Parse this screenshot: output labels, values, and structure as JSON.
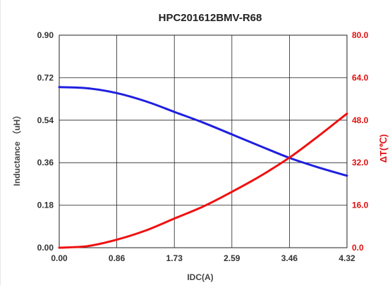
{
  "chart_data": {
    "type": "line",
    "title": "HPC201612BMV-R68",
    "xlabel": "IDC(A)",
    "ylabel_left": "Inductance （uH）",
    "ylabel_right": "ΔT(℃)",
    "x_ticks": [
      "0.00",
      "0.86",
      "1.73",
      "2.59",
      "3.46",
      "4.32"
    ],
    "y_left_ticks": [
      "0.00",
      "0.18",
      "0.36",
      "0.54",
      "0.72",
      "0.90"
    ],
    "y_right_ticks": [
      "0.0",
      "16.0",
      "32.0",
      "48.0",
      "64.0",
      "80.0"
    ],
    "xlim": [
      0,
      4.32
    ],
    "ylim_left": [
      0,
      0.9
    ],
    "ylim_right": [
      0,
      80
    ],
    "grid": true,
    "series": [
      {
        "name": "Inductance",
        "axis": "left",
        "color": "#1f1fe0",
        "x": [
          0.0,
          0.43,
          0.86,
          1.3,
          1.73,
          2.16,
          2.59,
          3.02,
          3.46,
          3.89,
          4.32
        ],
        "y": [
          0.68,
          0.675,
          0.655,
          0.62,
          0.575,
          0.53,
          0.48,
          0.43,
          0.38,
          0.34,
          0.305
        ]
      },
      {
        "name": "Temperature rise",
        "axis": "right",
        "color": "#f01010",
        "x": [
          0.0,
          0.43,
          0.86,
          1.3,
          1.73,
          2.16,
          2.59,
          3.02,
          3.46,
          3.89,
          4.32
        ],
        "y": [
          0.0,
          0.6,
          3.0,
          6.5,
          11.0,
          15.5,
          21.0,
          27.0,
          34.0,
          42.0,
          50.5
        ]
      }
    ],
    "colors": {
      "left_axis_text": "#333333",
      "right_axis_text": "#e01010",
      "grid": "#222222"
    }
  }
}
